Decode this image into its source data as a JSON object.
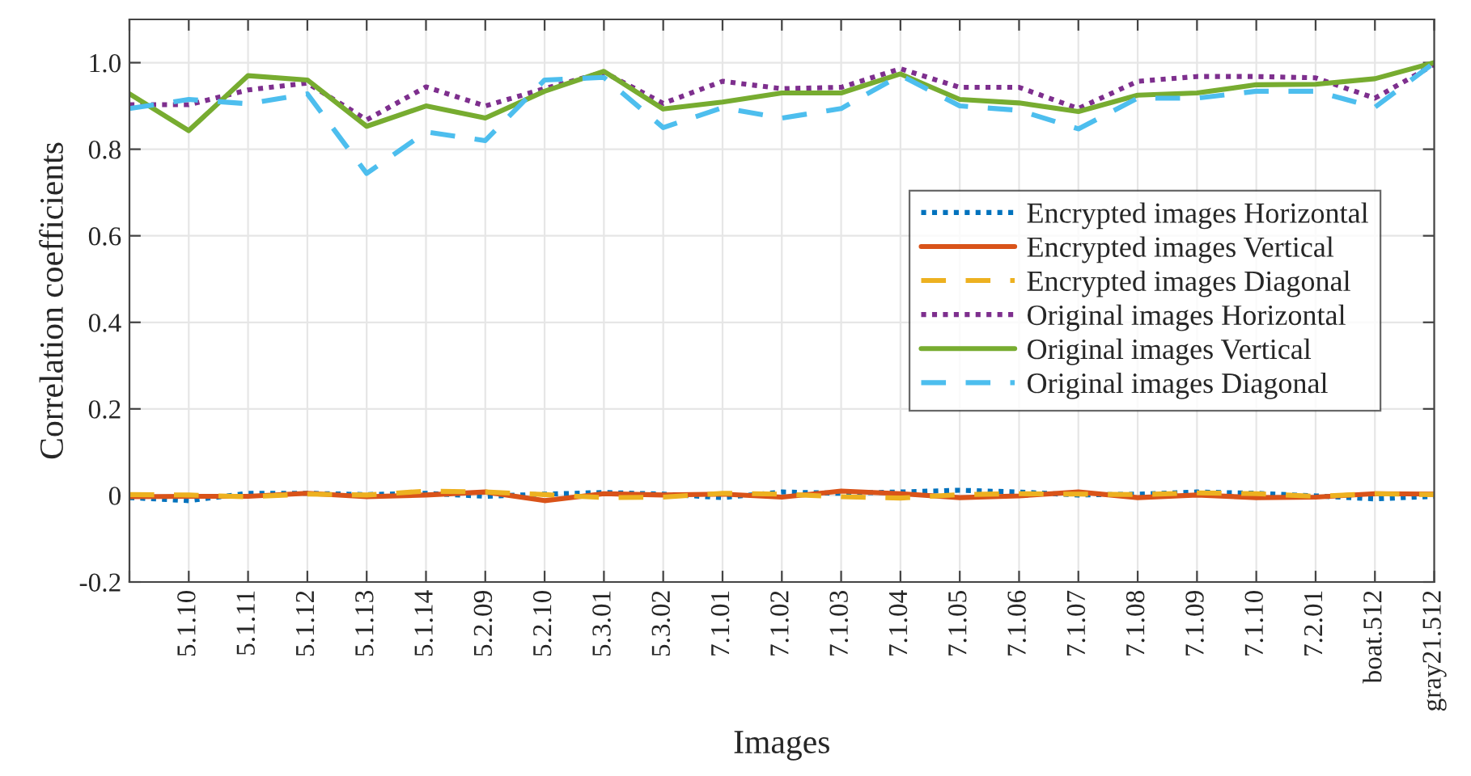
{
  "chart_data": {
    "type": "line",
    "xlabel": "Images",
    "ylabel": "Correlation coefficients",
    "categories": [
      null,
      "5.1.10",
      "5.1.11",
      "5.1.12",
      "5.1.13",
      "5.1.14",
      "5.2.09",
      "5.2.10",
      "5.3.01",
      "5.3.02",
      "7.1.01",
      "7.1.02",
      "7.1.03",
      "7.1.04",
      "7.1.05",
      "7.1.06",
      "7.1.07",
      "7.1.08",
      "7.1.09",
      "7.1.10",
      "7.2.01",
      "boat.512",
      "gray21.512"
    ],
    "ylim": [
      -0.2,
      1.1
    ],
    "yticks": [
      -0.2,
      0,
      0.2,
      0.4,
      0.6,
      0.8,
      {
        "value": 1,
        "label": "1.0"
      }
    ],
    "grid": true,
    "legend": "right",
    "series": [
      {
        "name": "Encrypted images Horizontal",
        "color": "#0072bd",
        "line_style": "dotted",
        "values": [
          -0.005,
          -0.012,
          0.005,
          0.005,
          0.002,
          0.005,
          -0.002,
          0.003,
          0.007,
          0.003,
          -0.005,
          0.008,
          0.005,
          0.008,
          0.012,
          0.008,
          0.001,
          0.003,
          0.008,
          0.005,
          -0.001,
          -0.008,
          -0.002
        ]
      },
      {
        "name": "Encrypted images Vertical",
        "color": "#d95319",
        "line_style": "solid",
        "values": [
          -0.003,
          -0.002,
          -0.002,
          0.005,
          -0.003,
          0.001,
          0.008,
          -0.012,
          0.004,
          0.001,
          0.003,
          -0.004,
          0.01,
          0.004,
          -0.005,
          -0.001,
          0.008,
          -0.005,
          0.001,
          -0.005,
          -0.004,
          0.004,
          0.003
        ]
      },
      {
        "name": "Encrypted images Diagonal",
        "color": "#edb120",
        "line_style": "dashed",
        "values": [
          0.002,
          0.001,
          -0.003,
          0.003,
          0.001,
          0.01,
          0.008,
          0.002,
          -0.005,
          -0.004,
          0.005,
          0.003,
          -0.003,
          -0.006,
          0.002,
          0.004,
          0.003,
          0.002,
          0.006,
          0.004,
          -0.002,
          0.004,
          0.002
        ]
      },
      {
        "name": "Original images Horizontal",
        "color": "#7e2f8e",
        "line_style": "dotted",
        "values": [
          0.903,
          0.903,
          0.937,
          0.953,
          0.868,
          0.944,
          0.9,
          0.94,
          0.978,
          0.906,
          0.957,
          0.94,
          0.943,
          0.986,
          0.943,
          0.943,
          0.894,
          0.957,
          0.968,
          0.968,
          0.965,
          0.918,
          0.996
        ]
      },
      {
        "name": "Original images Vertical",
        "color": "#77ac30",
        "line_style": "solid",
        "values": [
          0.928,
          0.843,
          0.97,
          0.96,
          0.853,
          0.9,
          0.872,
          0.934,
          0.98,
          0.893,
          0.909,
          0.93,
          0.93,
          0.974,
          0.915,
          0.907,
          0.887,
          0.925,
          0.93,
          0.949,
          0.95,
          0.963,
          1.0
        ]
      },
      {
        "name": "Original images Diagonal",
        "color": "#4dbeee",
        "line_style": "dashed",
        "values": [
          0.894,
          0.915,
          0.905,
          0.928,
          0.744,
          0.84,
          0.82,
          0.96,
          0.966,
          0.85,
          0.896,
          0.872,
          0.894,
          0.971,
          0.9,
          0.89,
          0.847,
          0.918,
          0.918,
          0.934,
          0.934,
          0.897,
          1.0
        ]
      }
    ]
  }
}
